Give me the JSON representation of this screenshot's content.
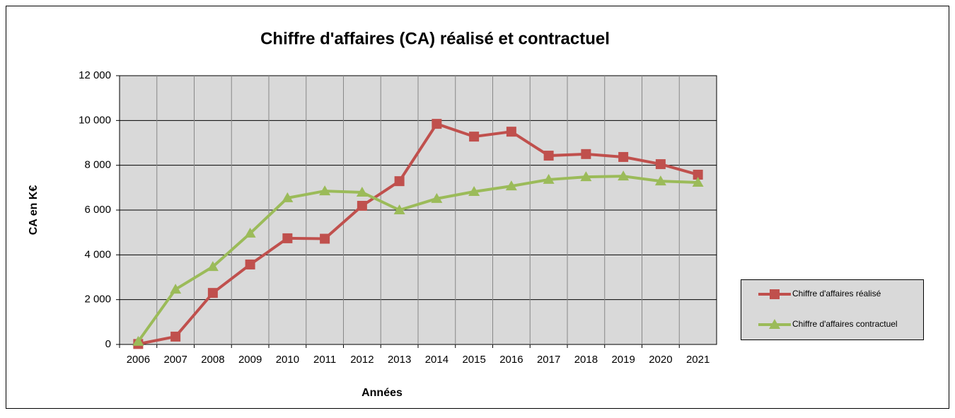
{
  "chart_data": {
    "type": "line",
    "title": "Chiffre d'affaires (CA) réalisé et contractuel",
    "x_label": "Années",
    "y_label": "CA en K€",
    "categories": [
      "2006",
      "2007",
      "2008",
      "2009",
      "2010",
      "2011",
      "2012",
      "2013",
      "2014",
      "2015",
      "2016",
      "2017",
      "2018",
      "2019",
      "2020",
      "2021"
    ],
    "series": [
      {
        "name": "Chiffre d'affaires réalisé",
        "color": "#c0504d",
        "marker": "square",
        "values": [
          20,
          350,
          2300,
          3570,
          4740,
          4720,
          6190,
          7290,
          9850,
          9280,
          9500,
          8430,
          8500,
          8370,
          8050,
          7580
        ]
      },
      {
        "name": "Chiffre d'affaires contractuel",
        "color": "#9bbb59",
        "marker": "triangle",
        "values": [
          130,
          2460,
          3470,
          4960,
          6540,
          6850,
          6790,
          6000,
          6510,
          6820,
          7070,
          7360,
          7480,
          7510,
          7290,
          7230
        ]
      }
    ],
    "ylim": [
      0,
      12000
    ],
    "yticks": [
      {
        "value": 0,
        "label": "0"
      },
      {
        "value": 2000,
        "label": "2 000"
      },
      {
        "value": 4000,
        "label": "4 000"
      },
      {
        "value": 6000,
        "label": "6 000"
      },
      {
        "value": 8000,
        "label": "8 000"
      },
      {
        "value": 10000,
        "label": "10 000"
      },
      {
        "value": 12000,
        "label": "12 000"
      }
    ],
    "grid": true,
    "legend": "right"
  }
}
